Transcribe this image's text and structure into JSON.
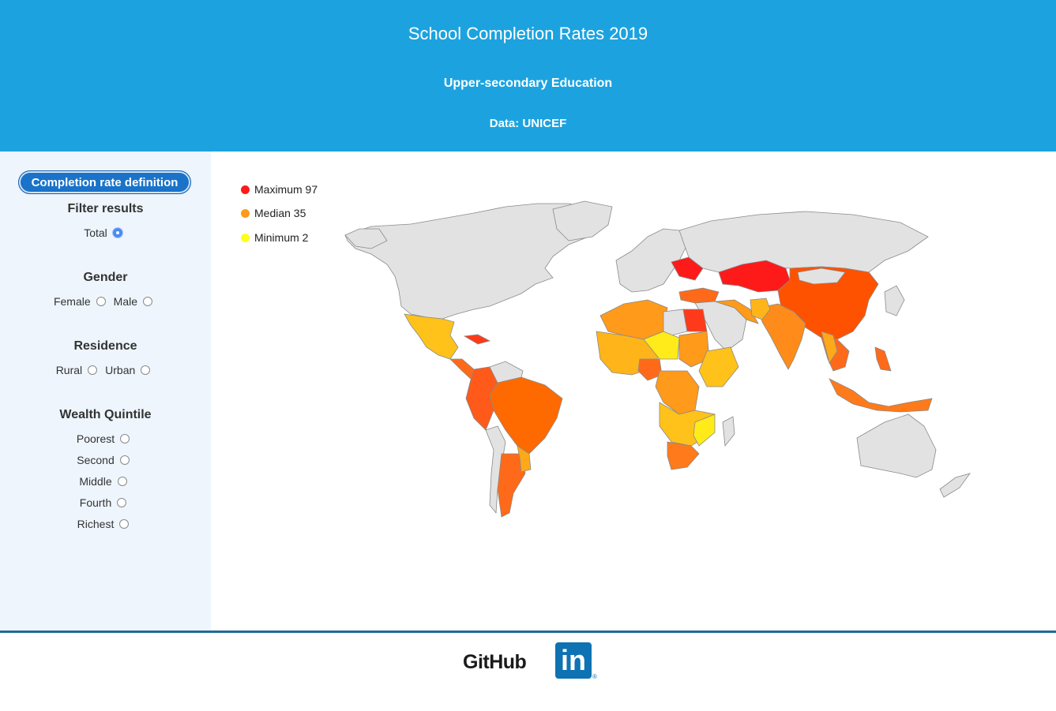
{
  "header": {
    "title": "School Completion Rates 2019",
    "subtitle": "Upper-secondary Education",
    "source": "Data: UNICEF"
  },
  "sidebar": {
    "definition_button": "Completion rate definition",
    "filter_title": "Filter results",
    "total_label": "Total",
    "gender_title": "Gender",
    "gender_options": [
      "Female",
      "Male"
    ],
    "residence_title": "Residence",
    "residence_options": [
      "Rural",
      "Urban"
    ],
    "wealth_title": "Wealth Quintile",
    "wealth_options": [
      "Poorest",
      "Second",
      "Middle",
      "Fourth",
      "Richest"
    ],
    "selected": "Total"
  },
  "legend": {
    "items": [
      {
        "label": "Maximum 97",
        "color": "#ff1a1a"
      },
      {
        "label": "Median 35",
        "color": "#ff9a1a"
      },
      {
        "label": "Minimum 2",
        "color": "#ffff1a"
      }
    ]
  },
  "colors": {
    "header_bg": "#1ca3df",
    "sidebar_bg": "#eef5fd",
    "no_data": "#e2e2e2",
    "scale_max": "#ff1a1a",
    "scale_median": "#ff9a1a",
    "scale_min": "#ffff1a"
  },
  "footer": {
    "github_label": "GitHub",
    "linkedin_label": "in",
    "linkedin_reg": "®"
  }
}
